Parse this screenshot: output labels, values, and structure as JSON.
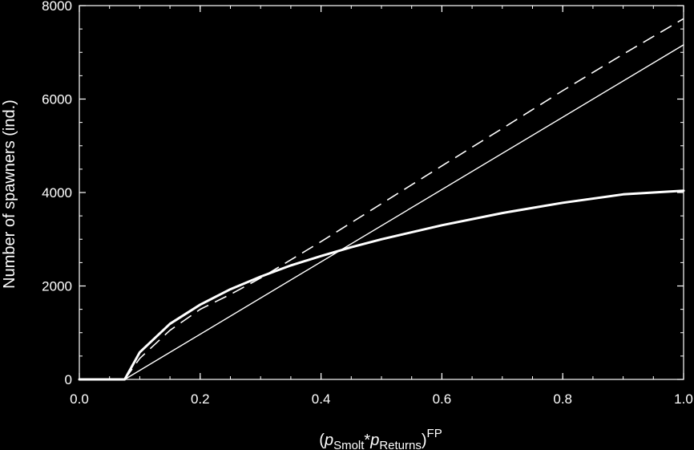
{
  "chart_data": {
    "type": "line",
    "title": "",
    "xlabel": {
      "prefix": "(",
      "p1_base": "p",
      "p1_sub": "Smolt",
      "op": "*",
      "p2_base": "p",
      "p2_sub": "Returns",
      "suffix": ")",
      "sup": "FP"
    },
    "ylabel": "Number of spawners (ind.)",
    "xlim": [
      0.0,
      1.0
    ],
    "ylim": [
      0,
      8000
    ],
    "x_ticks": [
      0.0,
      0.2,
      0.4,
      0.6,
      0.8,
      1.0
    ],
    "x_tick_labels": [
      "0.0",
      "0.2",
      "0.4",
      "0.6",
      "0.8",
      "1.0"
    ],
    "y_ticks": [
      0,
      2000,
      4000,
      6000,
      8000
    ],
    "y_tick_labels": [
      "0",
      "2000",
      "4000",
      "6000",
      "8000"
    ],
    "grid": false,
    "colors": {
      "background": "#000000",
      "foreground": "#ffffff"
    },
    "series": [
      {
        "style": "solid-thick",
        "x": [
          0.0,
          0.06,
          0.075,
          0.1,
          0.15,
          0.2,
          0.25,
          0.3,
          0.35,
          0.4,
          0.45,
          0.5,
          0.6,
          0.7,
          0.8,
          0.9,
          1.0
        ],
        "y": [
          0,
          0,
          0,
          580,
          1190,
          1600,
          1930,
          2200,
          2440,
          2640,
          2830,
          3000,
          3300,
          3560,
          3780,
          3960,
          4040
        ]
      },
      {
        "style": "solid-thin",
        "x": [
          0.075,
          1.0
        ],
        "y": [
          0,
          7160
        ]
      },
      {
        "style": "dashed",
        "x": [
          0.075,
          0.1,
          0.15,
          0.2,
          0.25,
          0.3,
          0.4,
          0.5,
          0.6,
          0.7,
          0.8,
          0.9,
          1.0
        ],
        "y": [
          0,
          450,
          1050,
          1500,
          1820,
          2170,
          2950,
          3760,
          4570,
          5370,
          6180,
          6960,
          7720
        ]
      }
    ]
  }
}
